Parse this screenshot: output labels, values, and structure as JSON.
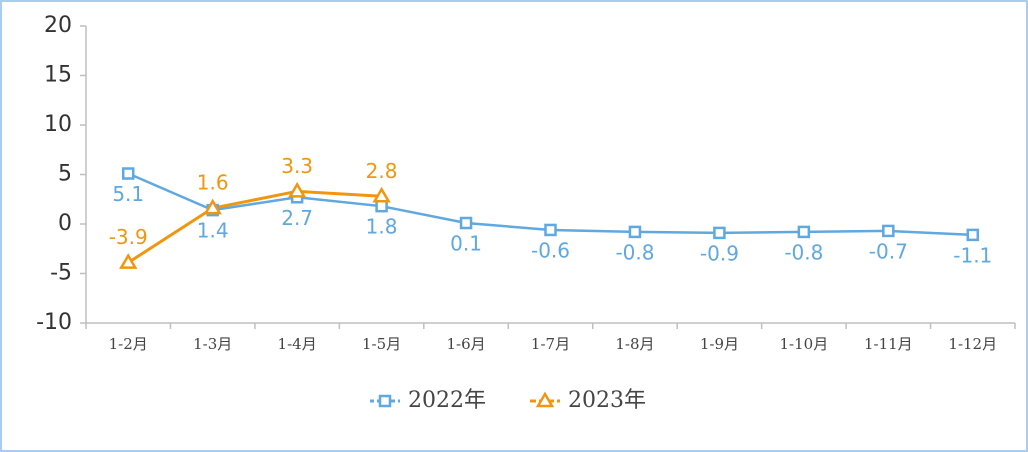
{
  "chart_data": {
    "type": "line",
    "categories": [
      "1-2月",
      "1-3月",
      "1-4月",
      "1-5月",
      "1-6月",
      "1-7月",
      "1-8月",
      "1-9月",
      "1-10月",
      "1-11月",
      "1-12月"
    ],
    "series": [
      {
        "name": "2022年",
        "color": "#5fa8e0",
        "marker": "square",
        "values": [
          5.1,
          1.4,
          2.7,
          1.8,
          0.1,
          -0.6,
          -0.8,
          -0.9,
          -0.8,
          -0.7,
          -1.1
        ]
      },
      {
        "name": "2023年",
        "color": "#f0960f",
        "marker": "triangle",
        "values": [
          -3.9,
          1.6,
          3.3,
          2.8,
          null,
          null,
          null,
          null,
          null,
          null,
          null
        ]
      }
    ],
    "ylim": [
      -10,
      20
    ],
    "yticks": [
      -10,
      -5,
      0,
      5,
      10,
      15,
      20
    ],
    "grid": false,
    "legend": "bottom"
  }
}
